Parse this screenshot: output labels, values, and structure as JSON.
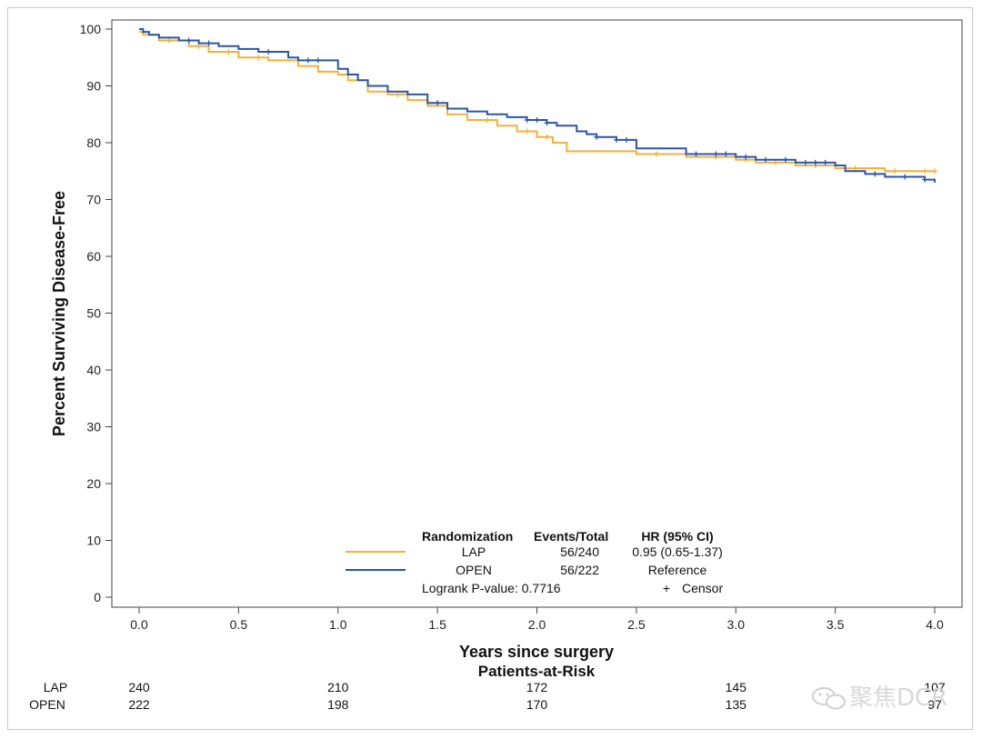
{
  "chart_data": {
    "type": "line",
    "title": "",
    "xlabel": "Years since surgery",
    "ylabel": "Percent Surviving Disease-Free",
    "xlim": [
      0,
      4
    ],
    "ylim": [
      0,
      100
    ],
    "x_ticks": [
      "0.0",
      "0.5",
      "1.0",
      "1.5",
      "2.0",
      "2.5",
      "3.0",
      "3.5",
      "4.0"
    ],
    "x_tick_values": [
      0,
      0.5,
      1,
      1.5,
      2,
      2.5,
      3,
      3.5,
      4
    ],
    "y_ticks": [
      "0",
      "10",
      "20",
      "30",
      "40",
      "50",
      "60",
      "70",
      "80",
      "90",
      "100"
    ],
    "y_tick_values": [
      0,
      10,
      20,
      30,
      40,
      50,
      60,
      70,
      80,
      90,
      100
    ],
    "series": [
      {
        "name": "LAP",
        "color": "#f5b035",
        "step": true,
        "x": [
          0,
          0.02,
          0.1,
          0.25,
          0.35,
          0.5,
          0.65,
          0.8,
          0.9,
          1.0,
          1.05,
          1.15,
          1.25,
          1.35,
          1.45,
          1.55,
          1.65,
          1.8,
          1.9,
          2.0,
          2.08,
          2.15,
          2.5,
          2.75,
          3.0,
          3.1,
          3.3,
          3.5,
          3.75,
          4.0
        ],
        "y": [
          99.5,
          99,
          98,
          97,
          96,
          95,
          94.5,
          93.5,
          92.5,
          92,
          91,
          89,
          88.5,
          87.5,
          86.5,
          85,
          84,
          83,
          82,
          81,
          80,
          78.5,
          78,
          77.5,
          77,
          76.5,
          76,
          75.5,
          75,
          75
        ],
        "censor_x": [
          0.15,
          0.3,
          0.45,
          0.6,
          1.3,
          1.75,
          1.95,
          2.05,
          2.6,
          2.9,
          3.05,
          3.2,
          3.4,
          3.6,
          3.8,
          3.95,
          4.0
        ],
        "events_total": "56/240",
        "hr": "0.95 (0.65-1.37)"
      },
      {
        "name": "OPEN",
        "color": "#2b54a8",
        "step": true,
        "x": [
          0,
          0.02,
          0.05,
          0.1,
          0.2,
          0.3,
          0.4,
          0.5,
          0.6,
          0.75,
          0.8,
          1.0,
          1.05,
          1.1,
          1.15,
          1.25,
          1.35,
          1.45,
          1.55,
          1.65,
          1.75,
          1.85,
          1.95,
          2.05,
          2.1,
          2.2,
          2.25,
          2.3,
          2.4,
          2.5,
          2.75,
          3.0,
          3.1,
          3.3,
          3.5,
          3.55,
          3.65,
          3.75,
          3.95,
          4.0
        ],
        "y": [
          100,
          99.5,
          99,
          98.5,
          98,
          97.5,
          97,
          96.5,
          96,
          95,
          94.5,
          93,
          92,
          91,
          90,
          89,
          88.5,
          87,
          86,
          85.5,
          85,
          84.5,
          84,
          83.5,
          83,
          82,
          81.5,
          81,
          80.5,
          79,
          78,
          77.5,
          77,
          76.5,
          76,
          75,
          74.5,
          74,
          73.5,
          73
        ],
        "censor_x": [
          0.25,
          0.35,
          0.65,
          0.85,
          0.9,
          1.5,
          1.95,
          2.0,
          2.05,
          2.3,
          2.4,
          2.45,
          2.8,
          2.9,
          2.95,
          3.05,
          3.15,
          3.25,
          3.35,
          3.4,
          3.45,
          3.7,
          3.85,
          3.95
        ],
        "events_total": "56/222",
        "hr": "Reference"
      }
    ],
    "legend": {
      "header_group": "Randomization",
      "header_events": "Events/Total",
      "header_hr": "HR (95% CI)",
      "logrank": "Logrank P-value: 0.7716",
      "censor_symbol": "+",
      "censor_label": "Censor"
    },
    "risk_table": {
      "title": "Patients-at-Risk",
      "x_values": [
        0,
        1,
        2,
        3,
        4
      ],
      "rows": [
        {
          "label": "LAP",
          "values": [
            "240",
            "210",
            "172",
            "145",
            "107"
          ]
        },
        {
          "label": "OPEN",
          "values": [
            "222",
            "198",
            "170",
            "135",
            "97"
          ]
        }
      ]
    }
  },
  "watermark": {
    "text": "聚焦DCR",
    "icon": "wechat-icon"
  }
}
